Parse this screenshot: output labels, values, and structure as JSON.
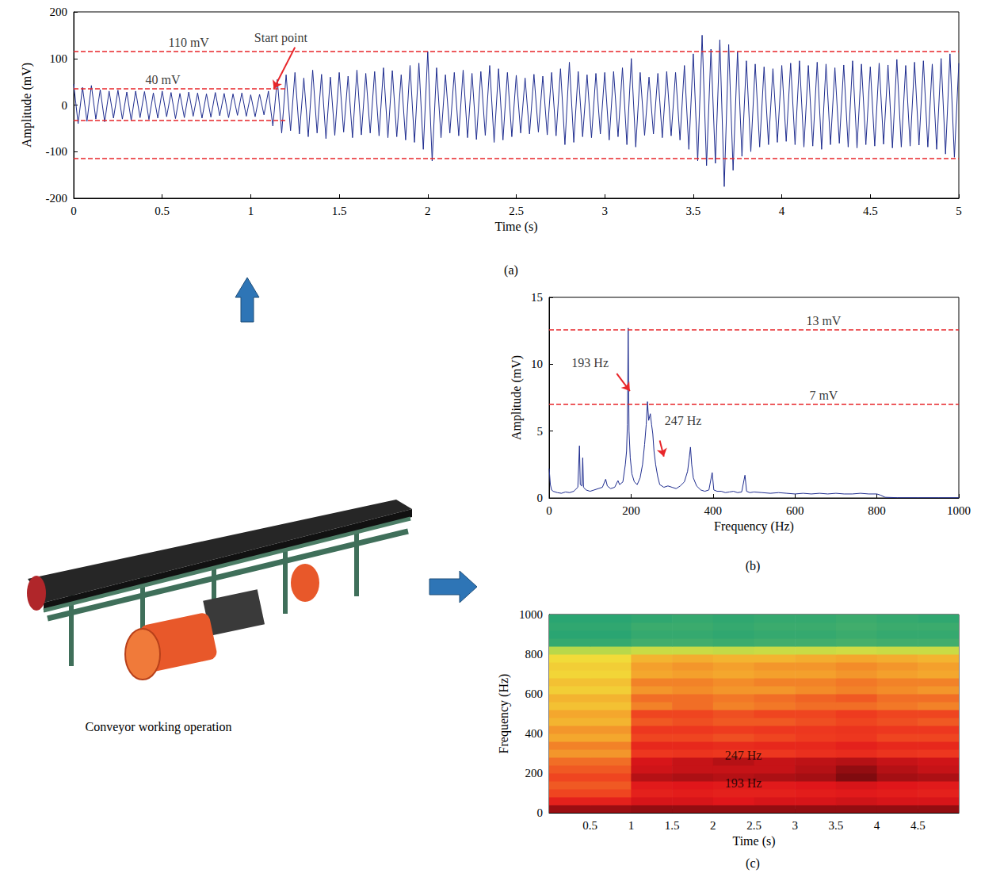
{
  "chart_data": [
    {
      "panel": "(a)",
      "type": "line",
      "color": "#1f2d8f",
      "grid": false,
      "xlabel": "Time (s)",
      "ylabel": "Amplitude (mV)",
      "xlim": [
        0,
        5
      ],
      "ylim": [
        -200,
        200
      ],
      "xticks": [
        0,
        0.5,
        1,
        1.5,
        2,
        2.5,
        3,
        3.5,
        4,
        4.5,
        5
      ],
      "yticks": [
        -200,
        -100,
        0,
        100,
        200
      ],
      "x": [
        0,
        0.025,
        0.05,
        0.075,
        0.1,
        0.125,
        0.15,
        0.175,
        0.2,
        0.225,
        0.25,
        0.275,
        0.3,
        0.325,
        0.35,
        0.375,
        0.4,
        0.425,
        0.45,
        0.475,
        0.5,
        0.525,
        0.55,
        0.575,
        0.6,
        0.625,
        0.65,
        0.675,
        0.7,
        0.725,
        0.75,
        0.775,
        0.8,
        0.825,
        0.85,
        0.875,
        0.9,
        0.925,
        0.95,
        0.975,
        1,
        1.025,
        1.05,
        1.075,
        1.1,
        1.125,
        1.15,
        1.175,
        1.2,
        1.225,
        1.25,
        1.275,
        1.3,
        1.325,
        1.35,
        1.375,
        1.4,
        1.425,
        1.45,
        1.475,
        1.5,
        1.525,
        1.55,
        1.575,
        1.6,
        1.625,
        1.65,
        1.675,
        1.7,
        1.725,
        1.75,
        1.775,
        1.8,
        1.825,
        1.85,
        1.875,
        1.9,
        1.925,
        1.95,
        1.975,
        2,
        2.025,
        2.05,
        2.075,
        2.1,
        2.125,
        2.15,
        2.175,
        2.2,
        2.225,
        2.25,
        2.275,
        2.3,
        2.325,
        2.35,
        2.375,
        2.4,
        2.425,
        2.45,
        2.475,
        2.5,
        2.525,
        2.55,
        2.575,
        2.6,
        2.625,
        2.65,
        2.675,
        2.7,
        2.725,
        2.75,
        2.775,
        2.8,
        2.825,
        2.85,
        2.875,
        2.9,
        2.925,
        2.95,
        2.975,
        3,
        3.025,
        3.05,
        3.075,
        3.1,
        3.125,
        3.15,
        3.175,
        3.2,
        3.225,
        3.25,
        3.275,
        3.3,
        3.325,
        3.35,
        3.375,
        3.4,
        3.425,
        3.45,
        3.475,
        3.5,
        3.525,
        3.55,
        3.575,
        3.6,
        3.625,
        3.65,
        3.675,
        3.7,
        3.725,
        3.75,
        3.775,
        3.8,
        3.825,
        3.85,
        3.875,
        3.9,
        3.925,
        3.95,
        3.975,
        4,
        4.025,
        4.05,
        4.075,
        4.1,
        4.125,
        4.15,
        4.175,
        4.2,
        4.225,
        4.25,
        4.275,
        4.3,
        4.325,
        4.35,
        4.375,
        4.4,
        4.425,
        4.45,
        4.475,
        4.5,
        4.525,
        4.55,
        4.575,
        4.6,
        4.625,
        4.65,
        4.675,
        4.7,
        4.725,
        4.75,
        4.775,
        4.8,
        4.825,
        4.85,
        4.875,
        4.9,
        4.925,
        4.95,
        4.975,
        5
      ],
      "values": [
        45,
        -40,
        38,
        -35,
        42,
        -30,
        33,
        -36,
        30,
        -28,
        32,
        -30,
        28,
        -33,
        30,
        -27,
        29,
        -31,
        26,
        -28,
        30,
        -25,
        27,
        -29,
        25,
        -27,
        28,
        -24,
        26,
        -28,
        24,
        -26,
        27,
        -23,
        25,
        -27,
        24,
        -22,
        26,
        -24,
        22,
        -25,
        23,
        -21,
        30,
        -45,
        55,
        -60,
        65,
        -55,
        70,
        -62,
        58,
        -68,
        75,
        -60,
        66,
        -72,
        60,
        -65,
        70,
        -58,
        62,
        -70,
        75,
        -64,
        68,
        -60,
        72,
        -66,
        80,
        -70,
        74,
        -68,
        65,
        -75,
        85,
        -80,
        90,
        -95,
        115,
        -120,
        80,
        -70,
        65,
        -60,
        70,
        -66,
        75,
        -70,
        68,
        -74,
        72,
        -65,
        85,
        -80,
        78,
        -75,
        70,
        -68,
        64,
        -60,
        58,
        -62,
        66,
        -58,
        62,
        -64,
        70,
        -66,
        78,
        -85,
        92,
        -80,
        72,
        -68,
        65,
        -70,
        68,
        -62,
        70,
        -75,
        72,
        -68,
        80,
        -85,
        100,
        -90,
        70,
        -65,
        60,
        -62,
        68,
        -70,
        72,
        -66,
        70,
        -75,
        85,
        -95,
        110,
        -120,
        150,
        -130,
        120,
        -125,
        140,
        -175,
        130,
        -140,
        115,
        -110,
        95,
        -100,
        88,
        -90,
        82,
        -85,
        78,
        -80,
        85,
        -78,
        90,
        -85,
        95,
        -90,
        85,
        -88,
        92,
        -95,
        88,
        -85,
        80,
        -82,
        86,
        -90,
        95,
        -92,
        88,
        -85,
        82,
        -88,
        90,
        -84,
        86,
        -92,
        98,
        -90,
        85,
        -88,
        92,
        -86,
        95,
        -90,
        88,
        -95,
        100,
        -105,
        110,
        -112,
        90
      ],
      "annotations": [
        {
          "text": "110 mV",
          "y": [
            115,
            -115
          ]
        },
        {
          "text": "40 mV",
          "y": [
            35,
            -33
          ],
          "x": [
            0,
            1.2
          ]
        },
        {
          "text": "Start point",
          "x": 1.13,
          "y": 35
        }
      ]
    },
    {
      "panel": "(b)",
      "type": "line",
      "color": "#1f2d8f",
      "grid": false,
      "xlabel": "Frequency (Hz)",
      "ylabel": "Amplitude (mV)",
      "xlim": [
        0,
        1000
      ],
      "ylim": [
        0,
        15
      ],
      "xticks": [
        0,
        200,
        400,
        600,
        800,
        1000
      ],
      "yticks": [
        0,
        5,
        10,
        15
      ],
      "x": [
        0,
        3,
        6,
        10,
        20,
        30,
        40,
        50,
        60,
        70,
        74,
        76,
        80,
        82,
        84,
        90,
        100,
        110,
        120,
        130,
        138,
        142,
        150,
        160,
        168,
        172,
        180,
        186,
        189,
        191,
        193,
        195,
        198,
        202,
        208,
        215,
        222,
        228,
        233,
        237,
        240,
        243,
        247,
        250,
        253,
        256,
        260,
        265,
        270,
        280,
        290,
        300,
        310,
        320,
        330,
        338,
        342,
        345,
        348,
        352,
        360,
        370,
        380,
        390,
        398,
        402,
        410,
        420,
        430,
        440,
        450,
        460,
        470,
        478,
        482,
        490,
        500,
        520,
        540,
        560,
        580,
        600,
        620,
        640,
        660,
        680,
        700,
        720,
        740,
        760,
        780,
        800,
        810,
        820,
        850,
        900,
        950,
        1000
      ],
      "values": [
        2.2,
        1.0,
        0.6,
        0.5,
        0.4,
        0.35,
        0.45,
        0.4,
        0.5,
        0.8,
        3.9,
        1.0,
        0.9,
        3.0,
        0.8,
        0.6,
        0.5,
        0.6,
        0.7,
        0.8,
        1.4,
        0.9,
        0.7,
        0.8,
        1.3,
        1.0,
        1.2,
        2.5,
        3.5,
        5.5,
        12.7,
        5.0,
        3.0,
        1.8,
        1.2,
        1.0,
        1.5,
        2.5,
        4.0,
        5.5,
        7.2,
        5.8,
        6.3,
        5.5,
        4.8,
        3.5,
        2.5,
        1.6,
        1.0,
        0.8,
        0.9,
        0.8,
        0.7,
        0.9,
        1.2,
        2.0,
        3.0,
        3.8,
        2.5,
        1.5,
        0.9,
        0.6,
        0.5,
        0.6,
        1.9,
        0.6,
        0.5,
        0.5,
        0.4,
        0.45,
        0.5,
        0.4,
        0.45,
        1.7,
        0.5,
        0.4,
        0.45,
        0.4,
        0.35,
        0.4,
        0.35,
        0.3,
        0.35,
        0.3,
        0.35,
        0.3,
        0.35,
        0.3,
        0.3,
        0.35,
        0.3,
        0.3,
        0.2,
        0.05,
        0.02,
        0.02,
        0.02,
        0.02
      ],
      "annotations": [
        {
          "text": "13 mV",
          "y": [
            12.6
          ]
        },
        {
          "text": "7 mV",
          "y": [
            7
          ]
        },
        {
          "text": "193 Hz",
          "x": 197,
          "y": 8.0
        },
        {
          "text": "247 Hz",
          "x": 280,
          "y": 3.1
        }
      ]
    },
    {
      "panel": "(c)",
      "type": "heatmap",
      "grid": false,
      "xlabel": "Time (s)",
      "ylabel": "Frequency (Hz)",
      "xlim": [
        0,
        5
      ],
      "ylim": [
        0,
        1000
      ],
      "xticks": [
        0.5,
        1,
        1.5,
        2,
        2.5,
        3,
        3.5,
        4,
        4.5
      ],
      "yticks": [
        0,
        200,
        400,
        600,
        800,
        1000
      ],
      "x_bins": [
        0,
        0.5,
        1,
        1.5,
        2,
        2.5,
        3,
        3.5,
        4,
        4.5,
        5
      ],
      "y_bins": [
        0,
        40,
        80,
        120,
        160,
        200,
        240,
        280,
        320,
        360,
        400,
        440,
        480,
        520,
        560,
        600,
        640,
        680,
        720,
        760,
        800,
        840,
        880,
        920,
        960,
        1000
      ],
      "color_range": [
        0,
        1
      ],
      "cells": [
        [
          0.93,
          0.93,
          0.94,
          0.94,
          0.94,
          0.94,
          0.94,
          0.94,
          0.94,
          0.94
        ],
        [
          0.82,
          0.82,
          0.86,
          0.86,
          0.85,
          0.86,
          0.86,
          0.87,
          0.86,
          0.86
        ],
        [
          0.74,
          0.74,
          0.82,
          0.83,
          0.82,
          0.82,
          0.83,
          0.84,
          0.83,
          0.82
        ],
        [
          0.72,
          0.72,
          0.84,
          0.85,
          0.84,
          0.84,
          0.85,
          0.86,
          0.85,
          0.84
        ],
        [
          0.74,
          0.74,
          0.9,
          0.91,
          0.9,
          0.91,
          0.92,
          0.96,
          0.92,
          0.91
        ],
        [
          0.72,
          0.72,
          0.87,
          0.88,
          0.88,
          0.88,
          0.9,
          0.94,
          0.9,
          0.88
        ],
        [
          0.7,
          0.7,
          0.86,
          0.88,
          0.9,
          0.88,
          0.89,
          0.9,
          0.88,
          0.87
        ],
        [
          0.66,
          0.66,
          0.76,
          0.77,
          0.76,
          0.76,
          0.78,
          0.79,
          0.77,
          0.76
        ],
        [
          0.68,
          0.68,
          0.8,
          0.8,
          0.79,
          0.8,
          0.8,
          0.82,
          0.8,
          0.8
        ],
        [
          0.64,
          0.64,
          0.74,
          0.74,
          0.73,
          0.74,
          0.75,
          0.76,
          0.74,
          0.74
        ],
        [
          0.66,
          0.66,
          0.76,
          0.76,
          0.75,
          0.76,
          0.76,
          0.77,
          0.76,
          0.76
        ],
        [
          0.62,
          0.62,
          0.72,
          0.73,
          0.72,
          0.72,
          0.73,
          0.74,
          0.73,
          0.72
        ],
        [
          0.64,
          0.64,
          0.74,
          0.74,
          0.73,
          0.74,
          0.74,
          0.75,
          0.74,
          0.74
        ],
        [
          0.6,
          0.6,
          0.68,
          0.7,
          0.68,
          0.69,
          0.7,
          0.7,
          0.69,
          0.68
        ],
        [
          0.62,
          0.62,
          0.7,
          0.7,
          0.69,
          0.7,
          0.71,
          0.72,
          0.7,
          0.7
        ],
        [
          0.58,
          0.58,
          0.66,
          0.67,
          0.66,
          0.66,
          0.67,
          0.68,
          0.67,
          0.66
        ],
        [
          0.6,
          0.6,
          0.68,
          0.68,
          0.67,
          0.68,
          0.68,
          0.69,
          0.68,
          0.68
        ],
        [
          0.57,
          0.57,
          0.64,
          0.65,
          0.64,
          0.65,
          0.65,
          0.66,
          0.65,
          0.64
        ],
        [
          0.58,
          0.58,
          0.65,
          0.66,
          0.65,
          0.66,
          0.66,
          0.67,
          0.66,
          0.65
        ],
        [
          0.56,
          0.56,
          0.62,
          0.63,
          0.62,
          0.62,
          0.63,
          0.64,
          0.63,
          0.62
        ],
        [
          0.45,
          0.45,
          0.48,
          0.48,
          0.47,
          0.48,
          0.48,
          0.49,
          0.48,
          0.48
        ],
        [
          0.22,
          0.22,
          0.24,
          0.24,
          0.23,
          0.24,
          0.24,
          0.25,
          0.24,
          0.24
        ],
        [
          0.2,
          0.2,
          0.22,
          0.22,
          0.21,
          0.22,
          0.22,
          0.23,
          0.22,
          0.22
        ],
        [
          0.21,
          0.21,
          0.23,
          0.23,
          0.22,
          0.23,
          0.23,
          0.24,
          0.23,
          0.23
        ],
        [
          0.2,
          0.2,
          0.21,
          0.22,
          0.21,
          0.22,
          0.22,
          0.23,
          0.22,
          0.21
        ]
      ],
      "annotations": [
        {
          "text": "247 Hz",
          "y": 247
        },
        {
          "text": "193 Hz",
          "y": 193
        }
      ]
    }
  ],
  "image": {
    "caption": "Conveyor working operation"
  }
}
